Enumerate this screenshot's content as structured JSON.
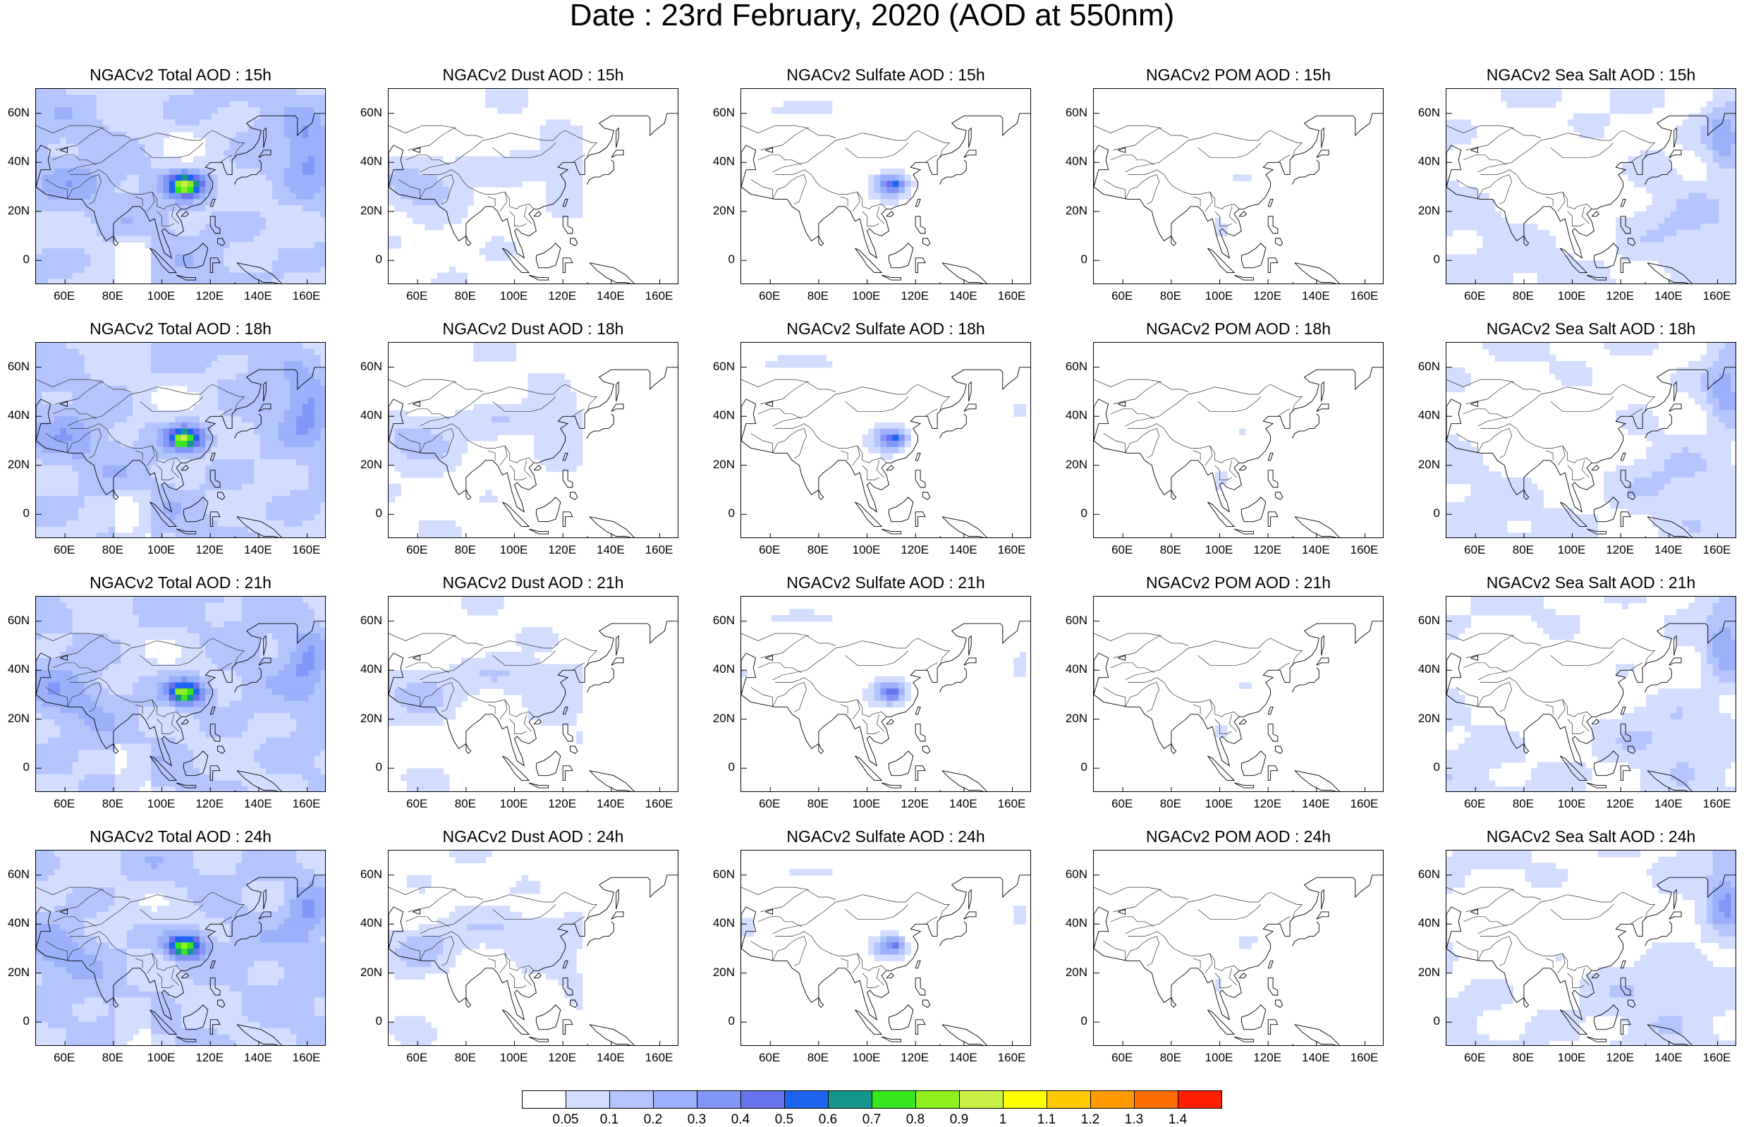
{
  "title": "Date : 23rd February, 2020 (AOD at 550nm)",
  "columns": [
    "Total",
    "Dust",
    "Sulfate",
    "POM",
    "Sea Salt"
  ],
  "rows": [
    "15h",
    "18h",
    "21h",
    "24h"
  ],
  "panels": [
    [
      "NGACv2 Total AOD : 15h",
      "NGACv2 Dust AOD : 15h",
      "NGACv2 Sulfate AOD : 15h",
      "NGACv2 POM AOD : 15h",
      "NGACv2 Sea Salt AOD : 15h"
    ],
    [
      "NGACv2 Total AOD : 18h",
      "NGACv2 Dust AOD : 18h",
      "NGACv2 Sulfate AOD : 18h",
      "NGACv2 POM AOD : 18h",
      "NGACv2 Sea Salt AOD : 18h"
    ],
    [
      "NGACv2 Total AOD : 21h",
      "NGACv2 Dust AOD : 21h",
      "NGACv2 Sulfate AOD : 21h",
      "NGACv2 POM AOD : 21h",
      "NGACv2 Sea Salt AOD : 21h"
    ],
    [
      "NGACv2 Total AOD : 24h",
      "NGACv2 Dust AOD : 24h",
      "NGACv2 Sulfate AOD : 24h",
      "NGACv2 POM AOD : 24h",
      "NGACv2 Sea Salt  AOD : 24h"
    ]
  ],
  "map_extent": {
    "lon": [
      48,
      168
    ],
    "lat": [
      -10,
      70
    ]
  },
  "lon_ticks": [
    {
      "value": 60,
      "label": "60E"
    },
    {
      "value": 80,
      "label": "80E"
    },
    {
      "value": 100,
      "label": "100E"
    },
    {
      "value": 120,
      "label": "120E"
    },
    {
      "value": 140,
      "label": "140E"
    },
    {
      "value": 160,
      "label": "160E"
    }
  ],
  "lat_ticks": [
    {
      "value": 60,
      "label": "60N"
    },
    {
      "value": 40,
      "label": "40N"
    },
    {
      "value": 20,
      "label": "20N"
    },
    {
      "value": 0,
      "label": "0"
    }
  ],
  "colorbar": {
    "colors": [
      "#ffffff",
      "#d2ddff",
      "#b4c5fd",
      "#9cb0fb",
      "#8296f7",
      "#6a73ee",
      "#1f64f0",
      "#14968c",
      "#37e61e",
      "#90f01e",
      "#c8f046",
      "#ffff00",
      "#ffc800",
      "#ff9b00",
      "#ff6e00",
      "#ff1e00"
    ],
    "labels": [
      "0.05",
      "0.1",
      "0.2",
      "0.3",
      "0.4",
      "0.5",
      "0.6",
      "0.7",
      "0.8",
      "0.9",
      "1",
      "1.1",
      "1.2",
      "1.3",
      "1.4"
    ]
  },
  "field_summary": {
    "Total": {
      "background_level": 2,
      "hotspot_max_level": 10,
      "pacific_max_level": 5
    },
    "Dust": {
      "background_level": 1,
      "max_level": 3
    },
    "Sulfate": {
      "background_level": 1,
      "hotspot_max_level": 6
    },
    "POM": {
      "background_level": 0,
      "max_level": 1
    },
    "Sea Salt": {
      "background_level": 1,
      "pacific_max_level": 4
    }
  },
  "coastline": [
    [
      [
        33,
        31
      ],
      [
        36,
        36
      ],
      [
        41,
        38
      ],
      [
        48,
        30
      ],
      [
        52,
        27
      ],
      [
        57,
        26
      ],
      [
        62,
        25
      ],
      [
        67,
        25
      ],
      [
        69,
        22
      ],
      [
        72,
        20
      ],
      [
        73,
        16
      ],
      [
        75,
        11
      ],
      [
        77,
        8
      ],
      [
        80,
        10
      ],
      [
        80,
        15
      ],
      [
        82,
        17
      ],
      [
        86,
        20
      ],
      [
        88,
        22
      ],
      [
        91,
        22
      ],
      [
        93,
        20
      ],
      [
        95,
        16
      ],
      [
        97,
        17
      ],
      [
        98,
        13
      ],
      [
        99,
        9
      ],
      [
        100,
        6
      ],
      [
        101,
        3
      ],
      [
        104,
        1
      ],
      [
        103,
        5
      ],
      [
        102,
        7
      ],
      [
        100,
        12
      ],
      [
        101,
        13
      ],
      [
        103,
        11
      ],
      [
        106,
        10
      ],
      [
        109,
        12
      ],
      [
        108,
        16
      ],
      [
        106,
        19
      ],
      [
        108,
        21
      ],
      [
        110,
        21
      ],
      [
        112,
        22
      ],
      [
        116,
        23
      ],
      [
        119,
        26
      ],
      [
        121,
        30
      ],
      [
        121,
        32
      ],
      [
        119,
        35
      ],
      [
        122,
        37
      ],
      [
        118,
        38
      ],
      [
        120,
        40
      ],
      [
        122,
        40
      ],
      [
        125,
        40
      ],
      [
        126,
        37
      ],
      [
        127,
        35
      ],
      [
        129,
        35
      ],
      [
        129,
        38
      ],
      [
        129,
        41
      ],
      [
        131,
        43
      ],
      [
        135,
        44
      ],
      [
        138,
        46
      ],
      [
        140,
        49
      ],
      [
        141,
        53
      ],
      [
        137,
        54
      ],
      [
        135,
        56
      ],
      [
        140,
        59
      ],
      [
        143,
        59
      ],
      [
        150,
        59
      ],
      [
        155,
        59
      ],
      [
        156,
        58
      ],
      [
        156,
        51
      ],
      [
        158,
        53
      ],
      [
        162,
        56
      ],
      [
        163,
        60
      ],
      [
        166,
        60
      ],
      [
        170,
        60
      ]
    ],
    [
      [
        130,
        31
      ],
      [
        131,
        33
      ],
      [
        133,
        34
      ],
      [
        135,
        34
      ],
      [
        137,
        35
      ],
      [
        139,
        35
      ],
      [
        141,
        37
      ],
      [
        141,
        40
      ],
      [
        140,
        41
      ]
    ],
    [
      [
        140,
        42
      ],
      [
        142,
        43
      ],
      [
        145,
        43
      ],
      [
        145,
        45
      ],
      [
        142,
        45
      ],
      [
        140,
        42
      ]
    ],
    [
      [
        142,
        46
      ],
      [
        143,
        50
      ],
      [
        143,
        54
      ],
      [
        142,
        53
      ],
      [
        142,
        46
      ]
    ],
    [
      [
        80,
        10
      ],
      [
        81,
        8
      ],
      [
        82,
        7
      ],
      [
        81,
        6
      ],
      [
        80,
        7
      ],
      [
        80,
        10
      ]
    ],
    [
      [
        95,
        5
      ],
      [
        97,
        4
      ],
      [
        100,
        1
      ],
      [
        104,
        -3
      ],
      [
        106,
        -5
      ],
      [
        103,
        -5
      ],
      [
        100,
        -2
      ],
      [
        98,
        1
      ],
      [
        95,
        5
      ]
    ],
    [
      [
        106,
        -6
      ],
      [
        110,
        -7
      ],
      [
        114,
        -7
      ],
      [
        114,
        -8
      ],
      [
        110,
        -8
      ],
      [
        106,
        -6
      ]
    ],
    [
      [
        109,
        2
      ],
      [
        112,
        3
      ],
      [
        115,
        5
      ],
      [
        117,
        7
      ],
      [
        119,
        5
      ],
      [
        118,
        1
      ],
      [
        117,
        -2
      ],
      [
        114,
        -3
      ],
      [
        110,
        -3
      ],
      [
        109,
        0
      ],
      [
        109,
        2
      ]
    ],
    [
      [
        120,
        1
      ],
      [
        123,
        1
      ],
      [
        124,
        -1
      ],
      [
        121,
        -1
      ],
      [
        121,
        -5
      ],
      [
        120,
        -5
      ],
      [
        120,
        1
      ]
    ],
    [
      [
        120,
        18
      ],
      [
        122,
        18
      ],
      [
        122,
        14
      ],
      [
        124,
        13
      ],
      [
        124,
        11
      ],
      [
        122,
        11
      ],
      [
        120,
        14
      ],
      [
        120,
        18
      ]
    ],
    [
      [
        123,
        9
      ],
      [
        125,
        9
      ],
      [
        126,
        7
      ],
      [
        125,
        6
      ],
      [
        123,
        7
      ],
      [
        123,
        9
      ]
    ],
    [
      [
        120,
        22
      ],
      [
        121,
        25
      ],
      [
        122,
        25
      ],
      [
        121,
        22
      ],
      [
        120,
        22
      ]
    ],
    [
      [
        108,
        18
      ],
      [
        110,
        20
      ],
      [
        111,
        19
      ],
      [
        110,
        18
      ],
      [
        108,
        18
      ]
    ],
    [
      [
        131,
        -1
      ],
      [
        136,
        -2
      ],
      [
        141,
        -3
      ],
      [
        146,
        -6
      ],
      [
        150,
        -10
      ],
      [
        146,
        -9
      ],
      [
        142,
        -9
      ],
      [
        138,
        -7
      ],
      [
        134,
        -4
      ],
      [
        131,
        -1
      ]
    ],
    [
      [
        130,
        -9
      ],
      [
        133,
        -12
      ]
    ],
    [
      [
        48,
        30
      ],
      [
        50,
        37
      ],
      [
        54,
        37
      ],
      [
        53,
        41
      ],
      [
        54,
        45
      ],
      [
        50,
        47
      ],
      [
        48,
        44
      ],
      [
        48,
        30
      ]
    ],
    [
      [
        58,
        45
      ],
      [
        61,
        46
      ],
      [
        61,
        44
      ],
      [
        58,
        45
      ]
    ]
  ],
  "borders": [
    [
      [
        61,
        36
      ],
      [
        65,
        38
      ],
      [
        70,
        39
      ],
      [
        75,
        40
      ],
      [
        79,
        43
      ],
      [
        82,
        45
      ],
      [
        87,
        49
      ],
      [
        92,
        50
      ],
      [
        98,
        52
      ],
      [
        103,
        51
      ],
      [
        107,
        50
      ],
      [
        112,
        49
      ],
      [
        116,
        49
      ],
      [
        119,
        52
      ],
      [
        121,
        53
      ],
      [
        127,
        50
      ],
      [
        132,
        48
      ],
      [
        134,
        48
      ],
      [
        131,
        45
      ],
      [
        130,
        42
      ]
    ],
    [
      [
        62,
        35
      ],
      [
        66,
        35
      ],
      [
        69,
        35
      ],
      [
        72,
        36
      ],
      [
        74,
        37
      ],
      [
        77,
        35
      ],
      [
        79,
        32
      ],
      [
        81,
        30
      ],
      [
        85,
        28
      ],
      [
        88,
        27
      ],
      [
        92,
        27
      ],
      [
        96,
        28
      ],
      [
        98,
        25
      ],
      [
        98,
        22
      ],
      [
        101,
        21
      ],
      [
        102,
        22
      ],
      [
        106,
        23
      ],
      [
        108,
        21
      ]
    ],
    [
      [
        61,
        25
      ],
      [
        63,
        29
      ],
      [
        66,
        30
      ],
      [
        68,
        32
      ],
      [
        71,
        34
      ],
      [
        74,
        35
      ]
    ],
    [
      [
        70,
        23
      ],
      [
        72,
        24
      ],
      [
        74,
        30
      ],
      [
        75,
        32
      ],
      [
        74,
        35
      ]
    ],
    [
      [
        89,
        26
      ],
      [
        92,
        25
      ],
      [
        92,
        22
      ]
    ],
    [
      [
        96,
        28
      ],
      [
        97,
        24
      ],
      [
        94,
        20
      ]
    ],
    [
      [
        98,
        20
      ],
      [
        100,
        18
      ],
      [
        100,
        14
      ],
      [
        103,
        14
      ],
      [
        105,
        15
      ]
    ],
    [
      [
        105,
        22
      ],
      [
        104,
        18
      ],
      [
        107,
        15
      ]
    ],
    [
      [
        124,
        40
      ],
      [
        127,
        42
      ],
      [
        129,
        43
      ]
    ],
    [
      [
        55,
        41
      ],
      [
        60,
        43
      ],
      [
        64,
        43
      ],
      [
        66,
        41
      ],
      [
        69,
        41
      ],
      [
        71,
        40
      ],
      [
        73,
        39
      ]
    ],
    [
      [
        56,
        45
      ],
      [
        60,
        46
      ],
      [
        65,
        47
      ],
      [
        70,
        51
      ],
      [
        75,
        54
      ],
      [
        80,
        51
      ],
      [
        84,
        51
      ],
      [
        87,
        50
      ]
    ],
    [
      [
        48,
        55
      ],
      [
        55,
        52
      ],
      [
        62,
        55
      ],
      [
        70,
        55
      ],
      [
        76,
        54
      ]
    ],
    [
      [
        91,
        46
      ],
      [
        96,
        42
      ],
      [
        100,
        42
      ],
      [
        107,
        42
      ],
      [
        111,
        43
      ],
      [
        115,
        46
      ],
      [
        117,
        48
      ]
    ],
    [
      [
        52,
        33
      ],
      [
        57,
        30
      ],
      [
        61,
        29
      ],
      [
        61,
        25
      ]
    ]
  ]
}
